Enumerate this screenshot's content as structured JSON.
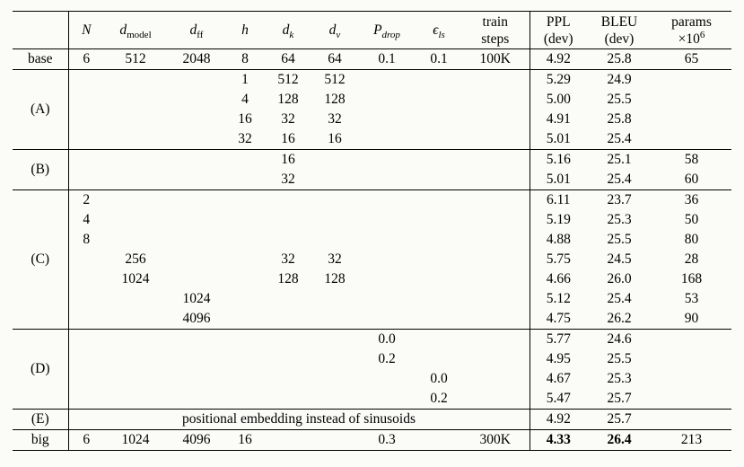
{
  "colors": {
    "background": "#fbfbf8",
    "text": "#000000",
    "rule": "#000000"
  },
  "table": {
    "header": {
      "cols": [
        {
          "id": "n",
          "type": "math",
          "base": "N",
          "sub": "",
          "subItalic": false
        },
        {
          "id": "dmodel",
          "type": "math",
          "base": "d",
          "sub": "model",
          "subItalic": false
        },
        {
          "id": "dff",
          "type": "math",
          "base": "d",
          "sub": "ff",
          "subItalic": false
        },
        {
          "id": "h",
          "type": "math",
          "base": "h",
          "sub": "",
          "subItalic": false
        },
        {
          "id": "dk",
          "type": "math",
          "base": "d",
          "sub": "k",
          "subItalic": true
        },
        {
          "id": "dv",
          "type": "math",
          "base": "d",
          "sub": "v",
          "subItalic": true
        },
        {
          "id": "pdrop",
          "type": "math",
          "base": "P",
          "sub": "drop",
          "subItalic": true
        },
        {
          "id": "els",
          "type": "math",
          "base": "ϵ",
          "sub": "ls",
          "subItalic": true
        },
        {
          "id": "steps",
          "type": "twoline",
          "line1": "train",
          "line2": "steps"
        },
        {
          "id": "ppl",
          "type": "twoline",
          "line1": "PPL",
          "line2": "(dev)"
        },
        {
          "id": "bleu",
          "type": "twoline",
          "line1": "BLEU",
          "line2": "(dev)"
        },
        {
          "id": "params",
          "type": "twoline",
          "line1": "params",
          "line2": "×10",
          "sup": "6"
        }
      ]
    },
    "groups": [
      {
        "label": "base",
        "rows": [
          {
            "params": [
              "6",
              "512",
              "2048",
              "8",
              "64",
              "64",
              "0.1",
              "0.1",
              "100K"
            ],
            "results": [
              "4.92",
              "25.8",
              "65"
            ]
          }
        ]
      },
      {
        "label": "(A)",
        "rows": [
          {
            "params": [
              "",
              "",
              "",
              "1",
              "512",
              "512",
              "",
              "",
              ""
            ],
            "results": [
              "5.29",
              "24.9",
              ""
            ]
          },
          {
            "params": [
              "",
              "",
              "",
              "4",
              "128",
              "128",
              "",
              "",
              ""
            ],
            "results": [
              "5.00",
              "25.5",
              ""
            ]
          },
          {
            "params": [
              "",
              "",
              "",
              "16",
              "32",
              "32",
              "",
              "",
              ""
            ],
            "results": [
              "4.91",
              "25.8",
              ""
            ]
          },
          {
            "params": [
              "",
              "",
              "",
              "32",
              "16",
              "16",
              "",
              "",
              ""
            ],
            "results": [
              "5.01",
              "25.4",
              ""
            ]
          }
        ]
      },
      {
        "label": "(B)",
        "rows": [
          {
            "params": [
              "",
              "",
              "",
              "",
              "16",
              "",
              "",
              "",
              ""
            ],
            "results": [
              "5.16",
              "25.1",
              "58"
            ]
          },
          {
            "params": [
              "",
              "",
              "",
              "",
              "32",
              "",
              "",
              "",
              ""
            ],
            "results": [
              "5.01",
              "25.4",
              "60"
            ]
          }
        ]
      },
      {
        "label": "(C)",
        "rows": [
          {
            "params": [
              "2",
              "",
              "",
              "",
              "",
              "",
              "",
              "",
              ""
            ],
            "results": [
              "6.11",
              "23.7",
              "36"
            ]
          },
          {
            "params": [
              "4",
              "",
              "",
              "",
              "",
              "",
              "",
              "",
              ""
            ],
            "results": [
              "5.19",
              "25.3",
              "50"
            ]
          },
          {
            "params": [
              "8",
              "",
              "",
              "",
              "",
              "",
              "",
              "",
              ""
            ],
            "results": [
              "4.88",
              "25.5",
              "80"
            ]
          },
          {
            "params": [
              "",
              "256",
              "",
              "",
              "32",
              "32",
              "",
              "",
              ""
            ],
            "results": [
              "5.75",
              "24.5",
              "28"
            ]
          },
          {
            "params": [
              "",
              "1024",
              "",
              "",
              "128",
              "128",
              "",
              "",
              ""
            ],
            "results": [
              "4.66",
              "26.0",
              "168"
            ]
          },
          {
            "params": [
              "",
              "",
              "1024",
              "",
              "",
              "",
              "",
              "",
              ""
            ],
            "results": [
              "5.12",
              "25.4",
              "53"
            ]
          },
          {
            "params": [
              "",
              "",
              "4096",
              "",
              "",
              "",
              "",
              "",
              ""
            ],
            "results": [
              "4.75",
              "26.2",
              "90"
            ]
          }
        ]
      },
      {
        "label": "(D)",
        "rows": [
          {
            "params": [
              "",
              "",
              "",
              "",
              "",
              "",
              "0.0",
              "",
              ""
            ],
            "results": [
              "5.77",
              "24.6",
              ""
            ]
          },
          {
            "params": [
              "",
              "",
              "",
              "",
              "",
              "",
              "0.2",
              "",
              ""
            ],
            "results": [
              "4.95",
              "25.5",
              ""
            ]
          },
          {
            "params": [
              "",
              "",
              "",
              "",
              "",
              "",
              "",
              "0.0",
              ""
            ],
            "results": [
              "4.67",
              "25.3",
              ""
            ]
          },
          {
            "params": [
              "",
              "",
              "",
              "",
              "",
              "",
              "",
              "0.2",
              ""
            ],
            "results": [
              "5.47",
              "25.7",
              ""
            ]
          }
        ]
      },
      {
        "label": "(E)",
        "rows": [
          {
            "span_text": "positional embedding instead of sinusoids",
            "results": [
              "4.92",
              "25.7",
              ""
            ]
          }
        ]
      },
      {
        "label": "big",
        "rows": [
          {
            "params": [
              "6",
              "1024",
              "4096",
              "16",
              "",
              "",
              "0.3",
              "",
              "300K"
            ],
            "results": [
              "4.33",
              "26.4",
              "213"
            ],
            "bold_results": [
              true,
              true,
              false
            ]
          }
        ]
      }
    ]
  }
}
